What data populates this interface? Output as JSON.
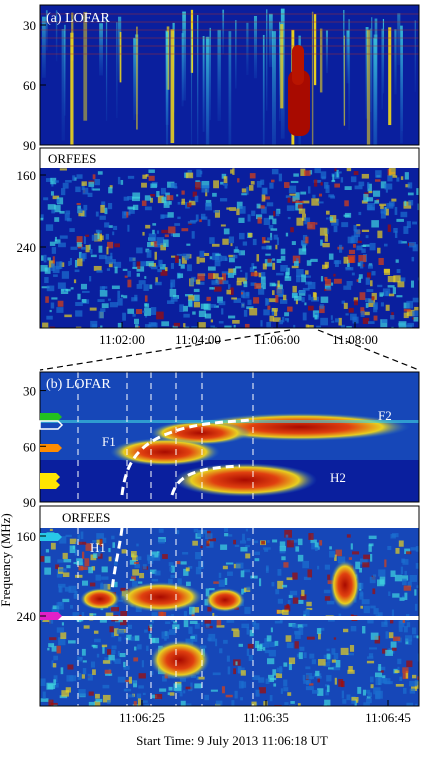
{
  "chart_data": [
    {
      "type": "heatmap",
      "panel_label": "(a) LOFAR",
      "instrument": "LOFAR",
      "ylim": [
        20,
        90
      ],
      "y_ticks": [
        "30",
        "60",
        "90"
      ],
      "y_tick_values": [
        30,
        60,
        90
      ]
    },
    {
      "type": "heatmap",
      "panel_label": "ORFEES",
      "instrument": "ORFEES",
      "y_ticks": [
        "160",
        "240"
      ],
      "y_tick_values": [
        160,
        240
      ],
      "x_ticks": [
        "11:02:00",
        "11:04:00",
        "11:06:00",
        "11:08:00"
      ]
    },
    {
      "type": "heatmap",
      "panel_label": "(b) LOFAR",
      "instrument": "LOFAR",
      "y_ticks": [
        "30",
        "60",
        "90"
      ],
      "y_tick_values": [
        30,
        60,
        90
      ],
      "annotations": [
        "F1",
        "F2",
        "H2"
      ],
      "ylabel": "Frequency (MHz)"
    },
    {
      "type": "heatmap",
      "panel_label": "ORFEES",
      "instrument": "ORFEES",
      "y_ticks": [
        "160",
        "240"
      ],
      "y_tick_values": [
        160,
        240
      ],
      "annotations": [
        "H1"
      ],
      "x_ticks": [
        "11:06:25",
        "11:06:35",
        "11:06:45"
      ],
      "xlabel": "Start Time: 9 July 2013 11:06:18 UT"
    }
  ],
  "colors": {
    "background_low": "#0a1f9e",
    "background_mid": "#1b6fd0",
    "emission_mid": "#3fd6e0",
    "emission_high": "#e8d020",
    "emission_peak": "#a80a00",
    "marker_green": "#22c020",
    "marker_white": "#ffffff",
    "marker_orange": "#ff8c00",
    "marker_yellow": "#ffe600",
    "marker_cyan": "#28c8e8",
    "marker_magenta": "#e020c8"
  }
}
